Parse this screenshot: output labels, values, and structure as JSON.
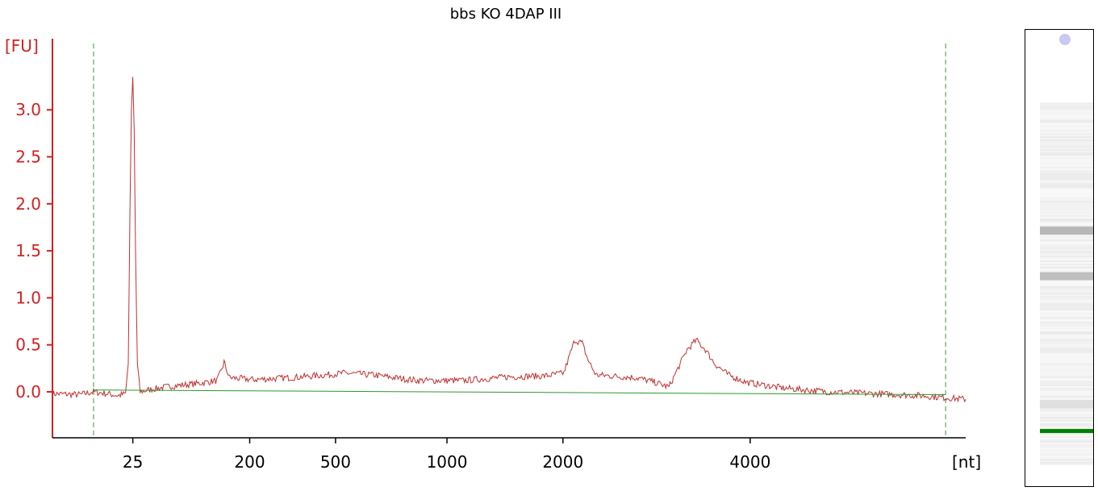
{
  "chart_data": {
    "type": "line",
    "title": "bbs KO 4DAP III",
    "ylabel": "[FU]",
    "xlabel": "[nt]",
    "x_ticks": [
      "25",
      "200",
      "500",
      "1000",
      "2000",
      "4000"
    ],
    "y_ticks": [
      "0.0",
      "0.5",
      "1.0",
      "1.5",
      "2.0",
      "2.5",
      "3.0"
    ],
    "ylim": [
      -0.5,
      3.7
    ],
    "xlim_position": [
      0,
      1000
    ],
    "tick_positions": [
      88,
      216,
      310,
      432,
      559,
      764
    ],
    "marker_lines_position": [
      45,
      978
    ],
    "grid": false,
    "legend": "none",
    "series": [
      {
        "color": "#c03030",
        "points": [
          [
            0,
            -0.02
          ],
          [
            30,
            -0.03
          ],
          [
            45,
            0.0
          ],
          [
            60,
            -0.02
          ],
          [
            72,
            -0.04
          ],
          [
            80,
            -0.02
          ],
          [
            83,
            0.3
          ],
          [
            85,
            2.0
          ],
          [
            86.5,
            3.0
          ],
          [
            88,
            3.35
          ],
          [
            89.5,
            2.8
          ],
          [
            91,
            1.5
          ],
          [
            93,
            0.3
          ],
          [
            96,
            0.0
          ],
          [
            110,
            0.03
          ],
          [
            130,
            0.06
          ],
          [
            160,
            0.09
          ],
          [
            180,
            0.12
          ],
          [
            185,
            0.22
          ],
          [
            188,
            0.32
          ],
          [
            190,
            0.25
          ],
          [
            194,
            0.15
          ],
          [
            220,
            0.13
          ],
          [
            260,
            0.15
          ],
          [
            300,
            0.18
          ],
          [
            320,
            0.2
          ],
          [
            350,
            0.18
          ],
          [
            400,
            0.12
          ],
          [
            450,
            0.12
          ],
          [
            500,
            0.16
          ],
          [
            540,
            0.17
          ],
          [
            560,
            0.2
          ],
          [
            565,
            0.35
          ],
          [
            572,
            0.55
          ],
          [
            580,
            0.52
          ],
          [
            586,
            0.35
          ],
          [
            595,
            0.18
          ],
          [
            640,
            0.15
          ],
          [
            660,
            0.1
          ],
          [
            675,
            0.05
          ],
          [
            685,
            0.25
          ],
          [
            695,
            0.45
          ],
          [
            705,
            0.55
          ],
          [
            715,
            0.45
          ],
          [
            725,
            0.3
          ],
          [
            740,
            0.18
          ],
          [
            760,
            0.1
          ],
          [
            800,
            0.04
          ],
          [
            850,
            0.0
          ],
          [
            900,
            -0.02
          ],
          [
            950,
            -0.04
          ],
          [
            1000,
            -0.08
          ]
        ]
      },
      {
        "color": "#2a9a2a",
        "points": [
          [
            45,
            0.02
          ],
          [
            978,
            -0.03
          ]
        ]
      }
    ]
  },
  "gel_lane": {
    "bands": [
      {
        "position": 0.44,
        "intensity": 0.45
      },
      {
        "position": 0.54,
        "intensity": 0.4
      },
      {
        "position": 0.82,
        "intensity": 0.2
      }
    ],
    "marker_band_position": 0.88,
    "marker_color": "#008000",
    "top_spot_color": "#c8c8f0"
  }
}
